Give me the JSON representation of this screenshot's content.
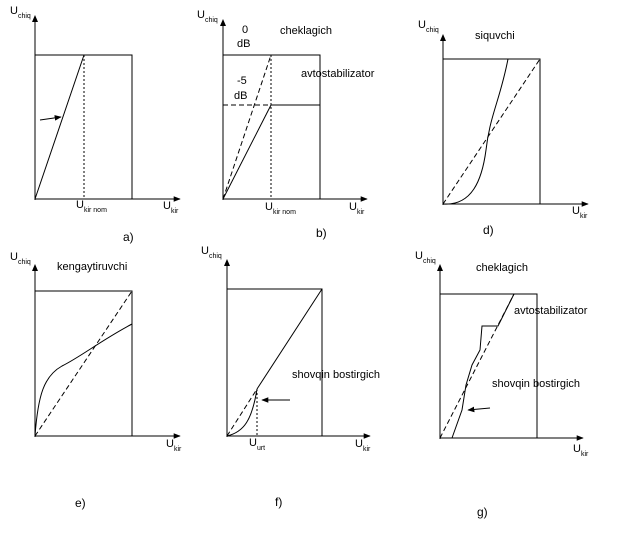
{
  "axis": {
    "u_main": "U",
    "out_sub": "chiq",
    "in_sub": "kir",
    "nom_sub": "kir nom",
    "urt_sub": "urt"
  },
  "panels": {
    "a": {
      "caption": "a)"
    },
    "b": {
      "caption": "b)",
      "label_cheklagich": "cheklagich",
      "label_avtostabilizator": "avtostabilizator",
      "level_0": "0",
      "level_0_db": "dB",
      "level_m5": "-5",
      "level_m5_db": "dB"
    },
    "d": {
      "caption": "d)",
      "label": "siquvchi"
    },
    "e": {
      "caption": "e)",
      "label": "kengaytiruvchi"
    },
    "f": {
      "caption": "f)",
      "label": "shovqin bostirgich"
    },
    "g": {
      "caption": "g)",
      "label_cheklagich": "cheklagich",
      "label_avtostabilizator": "avtostabilizator",
      "label_shovqin": "shovqin bostirgich"
    }
  },
  "colors": {
    "ink": "#000000",
    "paper": "#ffffff"
  }
}
